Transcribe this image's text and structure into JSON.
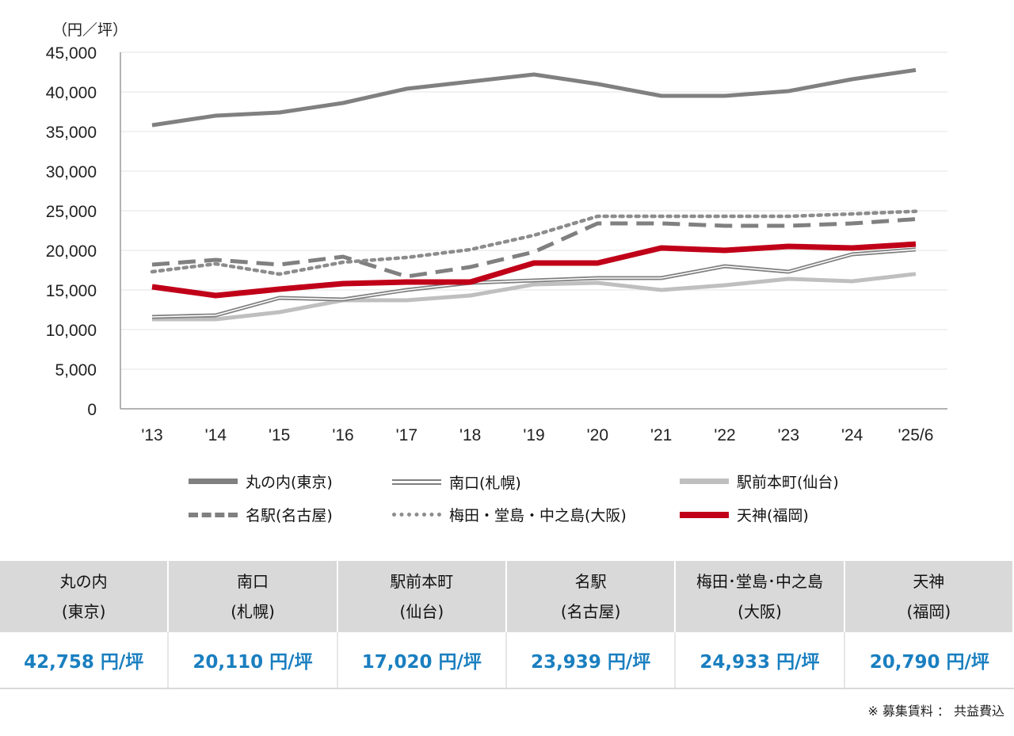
{
  "chart_data": {
    "type": "line",
    "ylabel": "（円／坪）",
    "categories": [
      "'13",
      "'14",
      "'15",
      "'16",
      "'17",
      "'18",
      "'19",
      "'20",
      "'21",
      "'22",
      "'23",
      "'24",
      "'25/6"
    ],
    "ylim": [
      0,
      45000
    ],
    "yticks": [
      0,
      5000,
      10000,
      15000,
      20000,
      25000,
      30000,
      35000,
      40000,
      45000
    ],
    "ytick_labels": [
      "0",
      "5,000",
      "10,000",
      "15,000",
      "20,000",
      "25,000",
      "30,000",
      "35,000",
      "40,000",
      "45,000"
    ],
    "grid": true,
    "legend_position": "bottom",
    "series": [
      {
        "name": "丸の内(東京)",
        "style": "solid-thick",
        "color": "#808080",
        "values": [
          35800,
          37000,
          37400,
          38600,
          40400,
          41300,
          42200,
          41000,
          39500,
          39500,
          40100,
          41600,
          42758
        ]
      },
      {
        "name": "南口(札幌)",
        "style": "double",
        "color": "#7f7f7f",
        "values": [
          11600,
          11800,
          14000,
          13800,
          15000,
          15900,
          16200,
          16500,
          16500,
          18000,
          17300,
          19500,
          20110
        ]
      },
      {
        "name": "駅前本町(仙台)",
        "style": "solid-light",
        "color": "#bfbfbf",
        "values": [
          11300,
          11300,
          12200,
          13700,
          13700,
          14300,
          15700,
          15900,
          15000,
          15600,
          16400,
          16100,
          17020
        ]
      },
      {
        "name": "名駅(名古屋)",
        "style": "dashed",
        "color": "#808080",
        "values": [
          18200,
          18800,
          18200,
          19200,
          16700,
          17900,
          19800,
          23400,
          23400,
          23100,
          23100,
          23400,
          23939
        ]
      },
      {
        "name": "梅田・堂島・中之島(大阪)",
        "style": "dotted",
        "color": "#8c8c8c",
        "values": [
          17300,
          18300,
          17000,
          18500,
          19100,
          20100,
          21900,
          24300,
          24300,
          24300,
          24300,
          24600,
          24933
        ]
      },
      {
        "name": "天神(福岡)",
        "style": "solid-bold",
        "color": "#c00018",
        "values": [
          15400,
          14300,
          15100,
          15800,
          16000,
          16000,
          18400,
          18400,
          20300,
          20000,
          20500,
          20300,
          20790
        ]
      }
    ]
  },
  "summary_table": [
    {
      "name_line1": "丸の内",
      "name_line2": "(東京)",
      "value": "42,758 円/坪"
    },
    {
      "name_line1": "南口",
      "name_line2": "(札幌)",
      "value": "20,110 円/坪"
    },
    {
      "name_line1": "駅前本町",
      "name_line2": "(仙台)",
      "value": "17,020 円/坪"
    },
    {
      "name_line1": "名駅",
      "name_line2": "(名古屋)",
      "value": "23,939 円/坪"
    },
    {
      "name_line1": "梅田･堂島･中之島",
      "name_line2": "(大阪)",
      "value": "24,933 円/坪"
    },
    {
      "name_line1": "天神",
      "name_line2": "(福岡)",
      "value": "20,790 円/坪"
    }
  ],
  "footnote": "※ 募集賃料 ： 共益費込"
}
